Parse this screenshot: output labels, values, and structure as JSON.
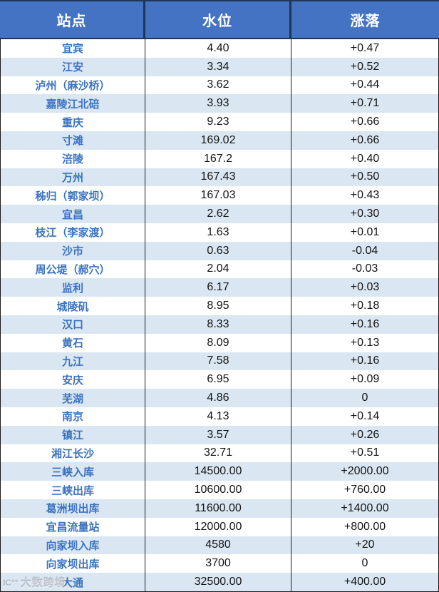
{
  "table": {
    "header": {
      "station": "站点",
      "level": "水位",
      "change": "涨落"
    },
    "row_keys": [
      "station",
      "level",
      "change"
    ],
    "rows": [
      {
        "station": "宜宾",
        "level": "4.40",
        "change": "+0.47"
      },
      {
        "station": "江安",
        "level": "3.34",
        "change": "+0.52"
      },
      {
        "station": "泸州（麻沙桥）",
        "level": "3.62",
        "change": "+0.44"
      },
      {
        "station": "嘉陵江北碚",
        "level": "3.93",
        "change": "+0.71"
      },
      {
        "station": "重庆",
        "level": "9.23",
        "change": "+0.66"
      },
      {
        "station": "寸滩",
        "level": "169.02",
        "change": "+0.66"
      },
      {
        "station": "涪陵",
        "level": "167.2",
        "change": "+0.40"
      },
      {
        "station": "万州",
        "level": "167.43",
        "change": "+0.50"
      },
      {
        "station": "秭归（郭家坝）",
        "level": "167.03",
        "change": "+0.43"
      },
      {
        "station": "宜昌",
        "level": "2.62",
        "change": "+0.30"
      },
      {
        "station": "枝江（李家渡）",
        "level": "1.63",
        "change": "+0.01"
      },
      {
        "station": "沙市",
        "level": "0.63",
        "change": "-0.04"
      },
      {
        "station": "周公堤（郝穴）",
        "level": "2.04",
        "change": "-0.03"
      },
      {
        "station": "监利",
        "level": "6.17",
        "change": "+0.03"
      },
      {
        "station": "城陵矶",
        "level": "8.95",
        "change": "+0.18"
      },
      {
        "station": "汉口",
        "level": "8.33",
        "change": "+0.16"
      },
      {
        "station": "黄石",
        "level": "8.09",
        "change": "+0.13"
      },
      {
        "station": "九江",
        "level": "7.58",
        "change": "+0.16"
      },
      {
        "station": "安庆",
        "level": "6.95",
        "change": "+0.09"
      },
      {
        "station": "芜湖",
        "level": "4.86",
        "change": "0"
      },
      {
        "station": "南京",
        "level": "4.13",
        "change": "+0.14"
      },
      {
        "station": "镇江",
        "level": "3.57",
        "change": "+0.26"
      },
      {
        "station": "湘江长沙",
        "level": "32.71",
        "change": "+0.51"
      },
      {
        "station": "三峡入库",
        "level": "14500.00",
        "change": "+2000.00"
      },
      {
        "station": "三峡出库",
        "level": "10600.00",
        "change": "+760.00"
      },
      {
        "station": "葛洲坝出库",
        "level": "11600.00",
        "change": "+1400.00"
      },
      {
        "station": "宜昌流量站",
        "level": "12000.00",
        "change": "+800.00"
      },
      {
        "station": "向家坝入库",
        "level": "4580",
        "change": "+20"
      },
      {
        "station": "向家坝出库",
        "level": "3700",
        "change": "0"
      },
      {
        "station": "大通",
        "level": "32500.00",
        "change": "+400.00"
      }
    ]
  },
  "watermark": {
    "logo_icon": "IC°°",
    "text": "大数跨境"
  },
  "colors": {
    "header_bg": "#4573c4",
    "header_text": "#ffffff",
    "stripe_bg": "#dae7f3",
    "station_text": "#3b73c0",
    "value_text": "#141414",
    "header_border": "#203455",
    "grid_border": "#1a1a1a"
  }
}
